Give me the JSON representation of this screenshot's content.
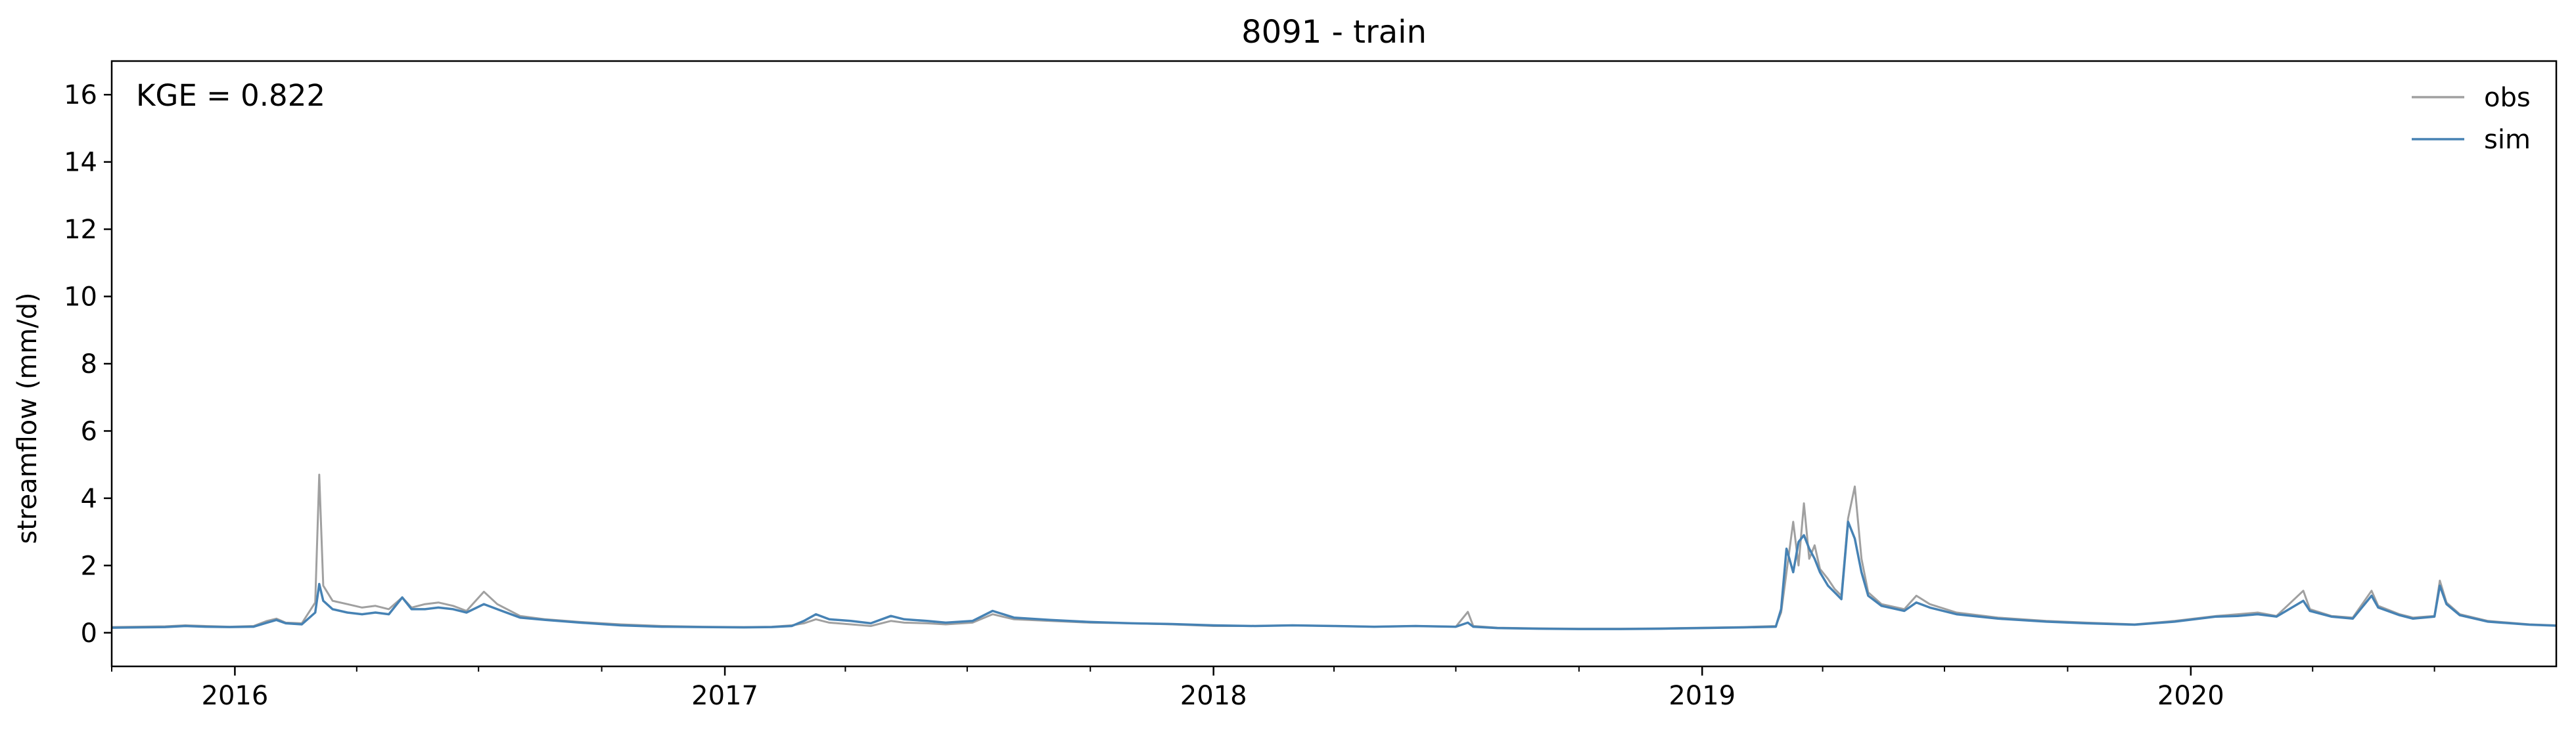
{
  "chart_data": {
    "type": "line",
    "title": "8091 - train",
    "xlabel": "",
    "ylabel": "streamflow (mm/d)",
    "x_axis": "date",
    "xlim": [
      "2015-10-01",
      "2020-09-30"
    ],
    "ylim": [
      -1,
      17
    ],
    "yticks": [
      0,
      2,
      4,
      6,
      8,
      10,
      12,
      14,
      16
    ],
    "xticks": [
      {
        "date": "2016-01-01",
        "label": "2016"
      },
      {
        "date": "2017-01-01",
        "label": "2017"
      },
      {
        "date": "2018-01-01",
        "label": "2018"
      },
      {
        "date": "2019-01-01",
        "label": "2019"
      },
      {
        "date": "2020-01-01",
        "label": "2020"
      }
    ],
    "grid": false,
    "legend_position": "top-right",
    "annotation": "KGE = 0.822",
    "series": [
      {
        "name": "obs",
        "color": "#a0a0a0",
        "points": [
          [
            "2015-10-01",
            0.17
          ],
          [
            "2015-10-20",
            0.18
          ],
          [
            "2015-11-10",
            0.19
          ],
          [
            "2015-11-25",
            0.22
          ],
          [
            "2015-12-10",
            0.2
          ],
          [
            "2015-12-28",
            0.18
          ],
          [
            "2016-01-15",
            0.2
          ],
          [
            "2016-01-25",
            0.35
          ],
          [
            "2016-02-01",
            0.42
          ],
          [
            "2016-02-08",
            0.3
          ],
          [
            "2016-02-20",
            0.28
          ],
          [
            "2016-03-01",
            0.9
          ],
          [
            "2016-03-04",
            4.7
          ],
          [
            "2016-03-07",
            1.4
          ],
          [
            "2016-03-14",
            0.95
          ],
          [
            "2016-03-25",
            0.85
          ],
          [
            "2016-04-05",
            0.75
          ],
          [
            "2016-04-15",
            0.8
          ],
          [
            "2016-04-25",
            0.7
          ],
          [
            "2016-05-05",
            1.05
          ],
          [
            "2016-05-12",
            0.75
          ],
          [
            "2016-05-22",
            0.85
          ],
          [
            "2016-06-01",
            0.9
          ],
          [
            "2016-06-12",
            0.8
          ],
          [
            "2016-06-22",
            0.65
          ],
          [
            "2016-07-05",
            1.22
          ],
          [
            "2016-07-15",
            0.85
          ],
          [
            "2016-08-01",
            0.5
          ],
          [
            "2016-08-20",
            0.4
          ],
          [
            "2016-09-15",
            0.32
          ],
          [
            "2016-10-15",
            0.25
          ],
          [
            "2016-11-15",
            0.2
          ],
          [
            "2016-12-15",
            0.18
          ],
          [
            "2017-01-15",
            0.17
          ],
          [
            "2017-02-05",
            0.18
          ],
          [
            "2017-02-20",
            0.22
          ],
          [
            "2017-03-01",
            0.28
          ],
          [
            "2017-03-10",
            0.4
          ],
          [
            "2017-03-20",
            0.3
          ],
          [
            "2017-04-05",
            0.25
          ],
          [
            "2017-04-20",
            0.2
          ],
          [
            "2017-05-05",
            0.35
          ],
          [
            "2017-05-15",
            0.3
          ],
          [
            "2017-06-01",
            0.28
          ],
          [
            "2017-06-15",
            0.25
          ],
          [
            "2017-07-05",
            0.3
          ],
          [
            "2017-07-20",
            0.55
          ],
          [
            "2017-08-05",
            0.4
          ],
          [
            "2017-09-01",
            0.35
          ],
          [
            "2017-10-01",
            0.3
          ],
          [
            "2017-11-01",
            0.28
          ],
          [
            "2017-12-01",
            0.25
          ],
          [
            "2018-01-01",
            0.2
          ],
          [
            "2018-02-01",
            0.2
          ],
          [
            "2018-03-01",
            0.22
          ],
          [
            "2018-04-01",
            0.2
          ],
          [
            "2018-05-01",
            0.18
          ],
          [
            "2018-06-01",
            0.2
          ],
          [
            "2018-07-01",
            0.18
          ],
          [
            "2018-07-10",
            0.62
          ],
          [
            "2018-07-14",
            0.2
          ],
          [
            "2018-08-01",
            0.15
          ],
          [
            "2018-09-01",
            0.13
          ],
          [
            "2018-10-01",
            0.12
          ],
          [
            "2018-11-01",
            0.12
          ],
          [
            "2018-12-01",
            0.13
          ],
          [
            "2019-01-01",
            0.15
          ],
          [
            "2019-02-01",
            0.17
          ],
          [
            "2019-02-25",
            0.2
          ],
          [
            "2019-03-01",
            0.6
          ],
          [
            "2019-03-05",
            1.8
          ],
          [
            "2019-03-10",
            3.3
          ],
          [
            "2019-03-14",
            2.0
          ],
          [
            "2019-03-18",
            3.85
          ],
          [
            "2019-03-22",
            2.2
          ],
          [
            "2019-03-26",
            2.6
          ],
          [
            "2019-03-30",
            1.9
          ],
          [
            "2019-04-05",
            1.6
          ],
          [
            "2019-04-10",
            1.3
          ],
          [
            "2019-04-15",
            1.1
          ],
          [
            "2019-04-20",
            3.4
          ],
          [
            "2019-04-25",
            4.35
          ],
          [
            "2019-04-30",
            2.2
          ],
          [
            "2019-05-05",
            1.2
          ],
          [
            "2019-05-15",
            0.85
          ],
          [
            "2019-06-01",
            0.7
          ],
          [
            "2019-06-10",
            1.1
          ],
          [
            "2019-06-20",
            0.85
          ],
          [
            "2019-07-10",
            0.6
          ],
          [
            "2019-08-10",
            0.45
          ],
          [
            "2019-09-15",
            0.35
          ],
          [
            "2019-10-15",
            0.3
          ],
          [
            "2019-11-20",
            0.25
          ],
          [
            "2019-12-20",
            0.35
          ],
          [
            "2020-01-20",
            0.5
          ],
          [
            "2020-02-05",
            0.55
          ],
          [
            "2020-02-20",
            0.6
          ],
          [
            "2020-03-05",
            0.5
          ],
          [
            "2020-03-25",
            1.25
          ],
          [
            "2020-03-30",
            0.7
          ],
          [
            "2020-04-15",
            0.5
          ],
          [
            "2020-05-01",
            0.45
          ],
          [
            "2020-05-15",
            1.25
          ],
          [
            "2020-05-20",
            0.8
          ],
          [
            "2020-06-05",
            0.55
          ],
          [
            "2020-06-15",
            0.45
          ],
          [
            "2020-07-01",
            0.5
          ],
          [
            "2020-07-05",
            1.55
          ],
          [
            "2020-07-10",
            0.9
          ],
          [
            "2020-07-20",
            0.55
          ],
          [
            "2020-08-10",
            0.35
          ],
          [
            "2020-09-10",
            0.25
          ],
          [
            "2020-09-30",
            0.22
          ]
        ]
      },
      {
        "name": "sim",
        "color": "#4682b4",
        "points": [
          [
            "2015-10-01",
            0.15
          ],
          [
            "2015-10-20",
            0.16
          ],
          [
            "2015-11-10",
            0.17
          ],
          [
            "2015-11-25",
            0.2
          ],
          [
            "2015-12-10",
            0.18
          ],
          [
            "2015-12-28",
            0.17
          ],
          [
            "2016-01-15",
            0.18
          ],
          [
            "2016-01-25",
            0.3
          ],
          [
            "2016-02-01",
            0.38
          ],
          [
            "2016-02-08",
            0.28
          ],
          [
            "2016-02-20",
            0.25
          ],
          [
            "2016-03-01",
            0.6
          ],
          [
            "2016-03-04",
            1.45
          ],
          [
            "2016-03-07",
            0.95
          ],
          [
            "2016-03-14",
            0.7
          ],
          [
            "2016-03-25",
            0.6
          ],
          [
            "2016-04-05",
            0.55
          ],
          [
            "2016-04-15",
            0.6
          ],
          [
            "2016-04-25",
            0.55
          ],
          [
            "2016-05-05",
            1.05
          ],
          [
            "2016-05-12",
            0.7
          ],
          [
            "2016-05-22",
            0.7
          ],
          [
            "2016-06-01",
            0.75
          ],
          [
            "2016-06-12",
            0.7
          ],
          [
            "2016-06-22",
            0.6
          ],
          [
            "2016-07-05",
            0.85
          ],
          [
            "2016-07-15",
            0.7
          ],
          [
            "2016-08-01",
            0.45
          ],
          [
            "2016-08-20",
            0.38
          ],
          [
            "2016-09-15",
            0.3
          ],
          [
            "2016-10-15",
            0.22
          ],
          [
            "2016-11-15",
            0.18
          ],
          [
            "2016-12-15",
            0.17
          ],
          [
            "2017-01-15",
            0.16
          ],
          [
            "2017-02-05",
            0.17
          ],
          [
            "2017-02-20",
            0.2
          ],
          [
            "2017-03-01",
            0.35
          ],
          [
            "2017-03-10",
            0.55
          ],
          [
            "2017-03-20",
            0.4
          ],
          [
            "2017-04-05",
            0.35
          ],
          [
            "2017-04-20",
            0.28
          ],
          [
            "2017-05-05",
            0.5
          ],
          [
            "2017-05-15",
            0.4
          ],
          [
            "2017-06-01",
            0.35
          ],
          [
            "2017-06-15",
            0.3
          ],
          [
            "2017-07-05",
            0.35
          ],
          [
            "2017-07-20",
            0.65
          ],
          [
            "2017-08-05",
            0.45
          ],
          [
            "2017-09-01",
            0.38
          ],
          [
            "2017-10-01",
            0.32
          ],
          [
            "2017-11-01",
            0.28
          ],
          [
            "2017-12-01",
            0.26
          ],
          [
            "2018-01-01",
            0.22
          ],
          [
            "2018-02-01",
            0.2
          ],
          [
            "2018-03-01",
            0.22
          ],
          [
            "2018-04-01",
            0.2
          ],
          [
            "2018-05-01",
            0.18
          ],
          [
            "2018-06-01",
            0.2
          ],
          [
            "2018-07-01",
            0.18
          ],
          [
            "2018-07-10",
            0.3
          ],
          [
            "2018-07-14",
            0.18
          ],
          [
            "2018-08-01",
            0.14
          ],
          [
            "2018-09-01",
            0.12
          ],
          [
            "2018-10-01",
            0.11
          ],
          [
            "2018-11-01",
            0.11
          ],
          [
            "2018-12-01",
            0.12
          ],
          [
            "2019-01-01",
            0.14
          ],
          [
            "2019-02-01",
            0.16
          ],
          [
            "2019-02-25",
            0.18
          ],
          [
            "2019-03-01",
            0.7
          ],
          [
            "2019-03-05",
            2.5
          ],
          [
            "2019-03-10",
            1.8
          ],
          [
            "2019-03-14",
            2.7
          ],
          [
            "2019-03-18",
            2.9
          ],
          [
            "2019-03-22",
            2.5
          ],
          [
            "2019-03-26",
            2.2
          ],
          [
            "2019-03-30",
            1.8
          ],
          [
            "2019-04-05",
            1.4
          ],
          [
            "2019-04-10",
            1.2
          ],
          [
            "2019-04-15",
            1.0
          ],
          [
            "2019-04-20",
            3.3
          ],
          [
            "2019-04-25",
            2.8
          ],
          [
            "2019-04-30",
            1.8
          ],
          [
            "2019-05-05",
            1.1
          ],
          [
            "2019-05-15",
            0.8
          ],
          [
            "2019-06-01",
            0.65
          ],
          [
            "2019-06-10",
            0.9
          ],
          [
            "2019-06-20",
            0.75
          ],
          [
            "2019-07-10",
            0.55
          ],
          [
            "2019-08-10",
            0.42
          ],
          [
            "2019-09-15",
            0.33
          ],
          [
            "2019-10-15",
            0.28
          ],
          [
            "2019-11-20",
            0.24
          ],
          [
            "2019-12-20",
            0.33
          ],
          [
            "2020-01-20",
            0.48
          ],
          [
            "2020-02-05",
            0.5
          ],
          [
            "2020-02-20",
            0.55
          ],
          [
            "2020-03-05",
            0.48
          ],
          [
            "2020-03-25",
            0.95
          ],
          [
            "2020-03-30",
            0.65
          ],
          [
            "2020-04-15",
            0.48
          ],
          [
            "2020-05-01",
            0.42
          ],
          [
            "2020-05-15",
            1.1
          ],
          [
            "2020-05-20",
            0.75
          ],
          [
            "2020-06-05",
            0.52
          ],
          [
            "2020-06-15",
            0.42
          ],
          [
            "2020-07-01",
            0.48
          ],
          [
            "2020-07-05",
            1.4
          ],
          [
            "2020-07-10",
            0.85
          ],
          [
            "2020-07-20",
            0.52
          ],
          [
            "2020-08-10",
            0.33
          ],
          [
            "2020-09-10",
            0.24
          ],
          [
            "2020-09-30",
            0.21
          ]
        ]
      }
    ]
  }
}
